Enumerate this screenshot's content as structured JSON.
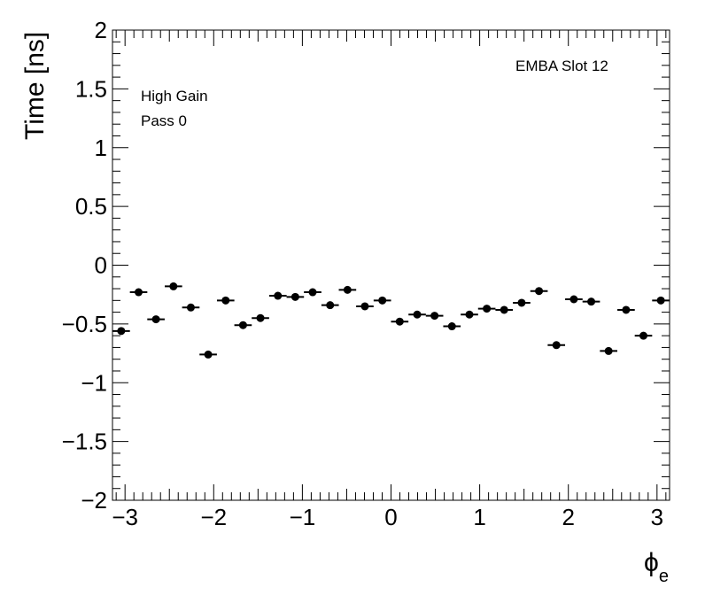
{
  "chart_data": {
    "type": "scatter",
    "xlabel": "ϕ",
    "xlabel_sub": "e",
    "ylabel": "Time [ns]",
    "xlim": [
      -3.1416,
      3.1416
    ],
    "ylim": [
      -2,
      2
    ],
    "x_ticks": [
      -3,
      -2,
      -1,
      0,
      1,
      2,
      3
    ],
    "x_tick_labels": [
      "−3",
      "−2",
      "−1",
      "0",
      "1",
      "2",
      "3"
    ],
    "y_ticks": [
      -2,
      -1.5,
      -1,
      -0.5,
      0,
      0.5,
      1,
      1.5,
      2
    ],
    "y_tick_labels": [
      "−2",
      "−1.5",
      "−1",
      "−0.5",
      "0",
      "0.5",
      "1",
      "1.5",
      "2"
    ],
    "grid": false,
    "annotations": {
      "top_right": "EMBA Slot 12",
      "line1": "High Gain",
      "line2": "Pass 0"
    },
    "bin_half_width": 0.0982,
    "points": [
      {
        "x": -3.043,
        "y": -0.56
      },
      {
        "x": -2.847,
        "y": -0.23
      },
      {
        "x": -2.651,
        "y": -0.46
      },
      {
        "x": -2.454,
        "y": -0.18
      },
      {
        "x": -2.258,
        "y": -0.36
      },
      {
        "x": -2.062,
        "y": -0.76
      },
      {
        "x": -1.865,
        "y": -0.3
      },
      {
        "x": -1.669,
        "y": -0.51
      },
      {
        "x": -1.473,
        "y": -0.45
      },
      {
        "x": -1.276,
        "y": -0.26
      },
      {
        "x": -1.08,
        "y": -0.27
      },
      {
        "x": -0.884,
        "y": -0.23
      },
      {
        "x": -0.687,
        "y": -0.34
      },
      {
        "x": -0.491,
        "y": -0.21
      },
      {
        "x": -0.295,
        "y": -0.35
      },
      {
        "x": -0.098,
        "y": -0.3
      },
      {
        "x": 0.098,
        "y": -0.48
      },
      {
        "x": 0.295,
        "y": -0.42
      },
      {
        "x": 0.491,
        "y": -0.43
      },
      {
        "x": 0.687,
        "y": -0.52
      },
      {
        "x": 0.884,
        "y": -0.42
      },
      {
        "x": 1.08,
        "y": -0.37
      },
      {
        "x": 1.276,
        "y": -0.38
      },
      {
        "x": 1.473,
        "y": -0.32
      },
      {
        "x": 1.669,
        "y": -0.22
      },
      {
        "x": 1.865,
        "y": -0.68
      },
      {
        "x": 2.062,
        "y": -0.29
      },
      {
        "x": 2.258,
        "y": -0.31
      },
      {
        "x": 2.454,
        "y": -0.73
      },
      {
        "x": 2.651,
        "y": -0.38
      },
      {
        "x": 2.847,
        "y": -0.6
      },
      {
        "x": 3.043,
        "y": -0.3
      }
    ]
  }
}
